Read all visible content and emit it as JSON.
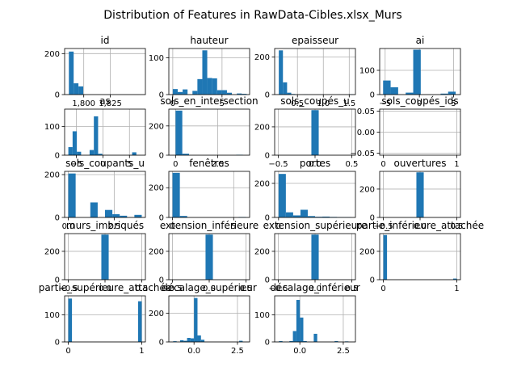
{
  "figure": {
    "suptitle": "Distribution of Features in RawData-Cibles.xlsx_Murs",
    "bar_color": "#1f77b4",
    "grid_color": "#b0b0b0"
  },
  "chart_data": [
    {
      "type": "bar",
      "title": "id",
      "x_ticks": [
        {
          "v": 1800,
          "label": "1,800"
        },
        {
          "v": 1825,
          "label": "1,825"
        }
      ],
      "y_ticks": [
        {
          "v": 0,
          "label": "0"
        },
        {
          "v": 200,
          "label": "200"
        }
      ],
      "xlim": [
        1782,
        1858
      ],
      "ylim": [
        0,
        225
      ],
      "bins": [
        [
          1786,
          1790.5,
          210
        ],
        [
          1790.5,
          1795,
          55
        ],
        [
          1795,
          1799.5,
          40
        ]
      ]
    },
    {
      "type": "bar",
      "title": "hauteur",
      "x_ticks": [
        {
          "v": 0,
          "label": "0"
        },
        {
          "v": 5,
          "label": "5"
        }
      ],
      "y_ticks": [
        {
          "v": 0,
          "label": "0"
        },
        {
          "v": 100,
          "label": "100"
        }
      ],
      "xlim": [
        -0.4,
        7.8
      ],
      "ylim": [
        0,
        125
      ],
      "bins": [
        [
          0,
          0.5,
          15
        ],
        [
          0.5,
          1,
          7
        ],
        [
          1,
          1.5,
          14
        ],
        [
          2,
          2.5,
          10
        ],
        [
          2.5,
          3,
          42
        ],
        [
          3,
          3.5,
          120
        ],
        [
          3.5,
          4,
          45
        ],
        [
          4,
          4.5,
          44
        ],
        [
          4.5,
          5,
          12
        ],
        [
          5,
          5.5,
          12
        ],
        [
          5.5,
          6,
          5
        ],
        [
          6.5,
          7,
          3
        ],
        [
          7,
          7.5,
          2
        ]
      ]
    },
    {
      "type": "bar",
      "title": "epaisseur",
      "x_ticks": [
        {
          "v": 0.5,
          "label": "0.5"
        },
        {
          "v": 1.0,
          "label": "1.0"
        },
        {
          "v": 1.5,
          "label": "1.5"
        }
      ],
      "y_ticks": [
        {
          "v": 0,
          "label": "0"
        },
        {
          "v": 200,
          "label": "200"
        }
      ],
      "xlim": [
        0.06,
        1.62
      ],
      "ylim": [
        0,
        245
      ],
      "bins": [
        [
          0.14,
          0.22,
          235
        ],
        [
          0.22,
          0.3,
          65
        ],
        [
          0.3,
          0.38,
          10
        ],
        [
          0.38,
          0.46,
          3
        ],
        [
          0.62,
          0.7,
          1
        ],
        [
          1.5,
          1.58,
          2
        ]
      ]
    },
    {
      "type": "bar",
      "title": "ai",
      "x_ticks": [
        {
          "v": -5,
          "label": "−5"
        },
        {
          "v": 0,
          "label": "0"
        },
        {
          "v": 5,
          "label": "5"
        }
      ],
      "y_ticks": [
        {
          "v": 0,
          "label": "0"
        },
        {
          "v": 100,
          "label": "100"
        }
      ],
      "xlim": [
        -5.8,
        6.0
      ],
      "ylim": [
        0,
        190
      ],
      "bins": [
        [
          -5.3,
          -4.2,
          58
        ],
        [
          -4.2,
          -3.1,
          30
        ],
        [
          -2.0,
          -0.9,
          8
        ],
        [
          -0.9,
          0.2,
          185
        ],
        [
          3.1,
          4.2,
          4
        ],
        [
          4.2,
          5.3,
          12
        ]
      ]
    },
    {
      "type": "bar",
      "title": "as",
      "x_ticks": [
        {
          "v": -5,
          "label": "−5"
        },
        {
          "v": 0,
          "label": "0"
        },
        {
          "v": 5,
          "label": "5"
        }
      ],
      "y_ticks": [
        {
          "v": 0,
          "label": "0"
        },
        {
          "v": 100,
          "label": "100"
        }
      ],
      "xlim": [
        -7.2,
        8.0
      ],
      "ylim": [
        0,
        160
      ],
      "bins": [
        [
          -6.5,
          -5.7,
          28
        ],
        [
          -5.7,
          -4.9,
          83
        ],
        [
          -4.9,
          -4.1,
          12
        ],
        [
          -2.5,
          -1.7,
          18
        ],
        [
          -1.7,
          -0.9,
          135
        ],
        [
          -0.9,
          -0.1,
          5
        ],
        [
          5.5,
          6.3,
          10
        ]
      ]
    },
    {
      "type": "bar",
      "title": "sols_en_intersection",
      "x_ticks": [
        {
          "v": 0,
          "label": "0"
        },
        {
          "v": 2.5,
          "label": "2.5"
        }
      ],
      "y_ticks": [
        {
          "v": 0,
          "label": "0"
        },
        {
          "v": 200,
          "label": "200"
        }
      ],
      "xlim": [
        -0.4,
        4.4
      ],
      "ylim": [
        0,
        315
      ],
      "bins": [
        [
          0,
          0.4,
          305
        ],
        [
          0.4,
          0.8,
          10
        ],
        [
          3.6,
          4.0,
          3
        ]
      ]
    },
    {
      "type": "bar",
      "title": "sols_coupés_u",
      "x_ticks": [
        {
          "v": -0.5,
          "label": "−0.5"
        },
        {
          "v": 0,
          "label": "0.0"
        },
        {
          "v": 0.5,
          "label": "0.5"
        }
      ],
      "y_ticks": [
        {
          "v": 0,
          "label": "0"
        },
        {
          "v": 200,
          "label": "200"
        }
      ],
      "xlim": [
        -0.55,
        0.55
      ],
      "ylim": [
        0,
        325
      ],
      "bins": [
        [
          -0.05,
          0.05,
          318
        ]
      ]
    },
    {
      "type": "bar",
      "title": "sols_coupés_ids",
      "x_ticks": [
        {
          "v": 0,
          "label": "0"
        },
        {
          "v": 1,
          "label": "1"
        }
      ],
      "y_ticks": [
        {
          "v": 0.05,
          "label": "0.05"
        },
        {
          "v": 0,
          "label": "0.00"
        },
        {
          "v": -0.05,
          "label": "−0.05"
        }
      ],
      "xlim": [
        -0.05,
        1.05
      ],
      "ylim": [
        -0.055,
        0.055
      ],
      "bins": []
    },
    {
      "type": "bar",
      "title": "sols_coupants_u",
      "x_ticks": [
        {
          "v": 0,
          "label": "0.0"
        },
        {
          "v": 2.5,
          "label": "2.5"
        }
      ],
      "y_ticks": [
        {
          "v": 0,
          "label": "0"
        },
        {
          "v": 200,
          "label": "200"
        }
      ],
      "xlim": [
        -0.2,
        4.2
      ],
      "ylim": [
        0,
        215
      ],
      "bins": [
        [
          0,
          0.4,
          205
        ],
        [
          1.2,
          1.6,
          70
        ],
        [
          2.0,
          2.4,
          35
        ],
        [
          2.4,
          2.8,
          15
        ],
        [
          2.8,
          3.2,
          8
        ],
        [
          3.6,
          4.0,
          12
        ]
      ]
    },
    {
      "type": "bar",
      "title": "fenêtres",
      "x_ticks": [
        {
          "v": 0,
          "label": "0"
        },
        {
          "v": 5,
          "label": "5"
        }
      ],
      "y_ticks": [
        {
          "v": 0,
          "label": "0"
        },
        {
          "v": 200,
          "label": "200"
        }
      ],
      "xlim": [
        -0.3,
        6.3
      ],
      "ylim": [
        0,
        310
      ],
      "bins": [
        [
          0,
          0.6,
          300
        ],
        [
          0.6,
          1.2,
          10
        ],
        [
          5.4,
          6.0,
          3
        ]
      ]
    },
    {
      "type": "bar",
      "title": "portes",
      "x_ticks": [
        {
          "v": 0,
          "label": "0"
        }
      ],
      "y_ticks": [
        {
          "v": 0,
          "label": "0"
        },
        {
          "v": 200,
          "label": "200"
        }
      ],
      "xlim": [
        -0.15,
        2.95
      ],
      "ylim": [
        0,
        270
      ],
      "bins": [
        [
          0,
          0.28,
          255
        ],
        [
          0.28,
          0.56,
          30
        ],
        [
          0.56,
          0.84,
          12
        ],
        [
          0.84,
          1.12,
          45
        ],
        [
          1.12,
          1.4,
          8
        ],
        [
          1.4,
          1.68,
          4
        ],
        [
          1.68,
          1.96,
          5
        ],
        [
          1.96,
          2.24,
          3
        ],
        [
          2.24,
          2.52,
          2
        ],
        [
          2.52,
          2.8,
          2
        ]
      ]
    },
    {
      "type": "bar",
      "title": "ouvertures",
      "x_ticks": [
        {
          "v": -0.5,
          "label": "−0.5"
        },
        {
          "v": 0,
          "label": "0.0"
        },
        {
          "v": 0.5,
          "label": "0.5"
        }
      ],
      "y_ticks": [
        {
          "v": 0,
          "label": "0"
        },
        {
          "v": 200,
          "label": "200"
        }
      ],
      "xlim": [
        -0.55,
        0.55
      ],
      "ylim": [
        0,
        325
      ],
      "bins": [
        [
          -0.05,
          0.05,
          318
        ]
      ]
    },
    {
      "type": "bar",
      "title": "murs_imbriqués",
      "x_ticks": [
        {
          "v": -0.5,
          "label": "−0.5"
        },
        {
          "v": 0,
          "label": "0.0"
        },
        {
          "v": 0.5,
          "label": "0.5"
        }
      ],
      "y_ticks": [
        {
          "v": 0,
          "label": "0"
        },
        {
          "v": 200,
          "label": "200"
        }
      ],
      "xlim": [
        -0.55,
        0.55
      ],
      "ylim": [
        0,
        325
      ],
      "bins": [
        [
          -0.05,
          0.05,
          318
        ]
      ]
    },
    {
      "type": "bar",
      "title": "extension_inférieure",
      "x_ticks": [
        {
          "v": -0.5,
          "label": "−0.5"
        },
        {
          "v": 0,
          "label": "0.0"
        },
        {
          "v": 0.5,
          "label": "0.5"
        }
      ],
      "y_ticks": [
        {
          "v": 0,
          "label": "0"
        },
        {
          "v": 200,
          "label": "200"
        }
      ],
      "xlim": [
        -0.55,
        0.55
      ],
      "ylim": [
        0,
        325
      ],
      "bins": [
        [
          -0.05,
          0.05,
          318
        ]
      ]
    },
    {
      "type": "bar",
      "title": "extension_supérieure",
      "x_ticks": [
        {
          "v": -0.5,
          "label": "−0.5"
        },
        {
          "v": 0,
          "label": "0.0"
        },
        {
          "v": 0.5,
          "label": "0.5"
        }
      ],
      "y_ticks": [
        {
          "v": 0,
          "label": "0"
        },
        {
          "v": 200,
          "label": "200"
        }
      ],
      "xlim": [
        -0.55,
        0.55
      ],
      "ylim": [
        0,
        325
      ],
      "bins": [
        [
          -0.05,
          0.05,
          318
        ]
      ]
    },
    {
      "type": "bar",
      "title": "partie_inférieure_attachée",
      "x_ticks": [
        {
          "v": 0,
          "label": "0"
        },
        {
          "v": 1,
          "label": "1"
        }
      ],
      "y_ticks": [
        {
          "v": 0,
          "label": "0"
        },
        {
          "v": 200,
          "label": "200"
        }
      ],
      "xlim": [
        -0.05,
        1.05
      ],
      "ylim": [
        0,
        325
      ],
      "bins": [
        [
          0,
          0.05,
          315
        ],
        [
          0.95,
          1.0,
          8
        ]
      ]
    },
    {
      "type": "bar",
      "title": "partie_supérieure_attachée",
      "x_ticks": [
        {
          "v": 0,
          "label": "0"
        },
        {
          "v": 1,
          "label": "1"
        }
      ],
      "y_ticks": [
        {
          "v": 0,
          "label": "0"
        },
        {
          "v": 100,
          "label": "100"
        }
      ],
      "xlim": [
        -0.05,
        1.05
      ],
      "ylim": [
        0,
        170
      ],
      "bins": [
        [
          0,
          0.05,
          160
        ],
        [
          0.95,
          1.0,
          150
        ]
      ]
    },
    {
      "type": "bar",
      "title": "décalage_supérieur",
      "x_ticks": [
        {
          "v": 0,
          "label": "0.0"
        },
        {
          "v": 2.5,
          "label": "2.5"
        }
      ],
      "y_ticks": [
        {
          "v": 0,
          "label": "0"
        },
        {
          "v": 200,
          "label": "200"
        }
      ],
      "xlim": [
        -1.45,
        3.2
      ],
      "ylim": [
        0,
        320
      ],
      "bins": [
        [
          -1.2,
          -1.0,
          5
        ],
        [
          -0.8,
          -0.6,
          12
        ],
        [
          -0.6,
          -0.4,
          8
        ],
        [
          -0.4,
          -0.2,
          28
        ],
        [
          -0.2,
          0,
          25
        ],
        [
          0,
          0.2,
          305
        ],
        [
          0.2,
          0.4,
          45
        ],
        [
          0.4,
          0.6,
          15
        ],
        [
          2.6,
          2.8,
          8
        ]
      ]
    },
    {
      "type": "bar",
      "title": "décalage_inférieur",
      "x_ticks": [
        {
          "v": 0,
          "label": "0.0"
        },
        {
          "v": 2.5,
          "label": "2.5"
        }
      ],
      "y_ticks": [
        {
          "v": 0,
          "label": "0"
        },
        {
          "v": 100,
          "label": "100"
        }
      ],
      "xlim": [
        -1.45,
        3.2
      ],
      "ylim": [
        0,
        170
      ],
      "bins": [
        [
          -1.2,
          -1.0,
          3
        ],
        [
          -0.6,
          -0.4,
          3
        ],
        [
          -0.4,
          -0.2,
          40
        ],
        [
          -0.2,
          0,
          155
        ],
        [
          0,
          0.2,
          90
        ],
        [
          0.2,
          0.4,
          3
        ],
        [
          0.8,
          1.0,
          30
        ],
        [
          2.0,
          2.2,
          3
        ],
        [
          2.6,
          2.8,
          2
        ]
      ]
    }
  ]
}
